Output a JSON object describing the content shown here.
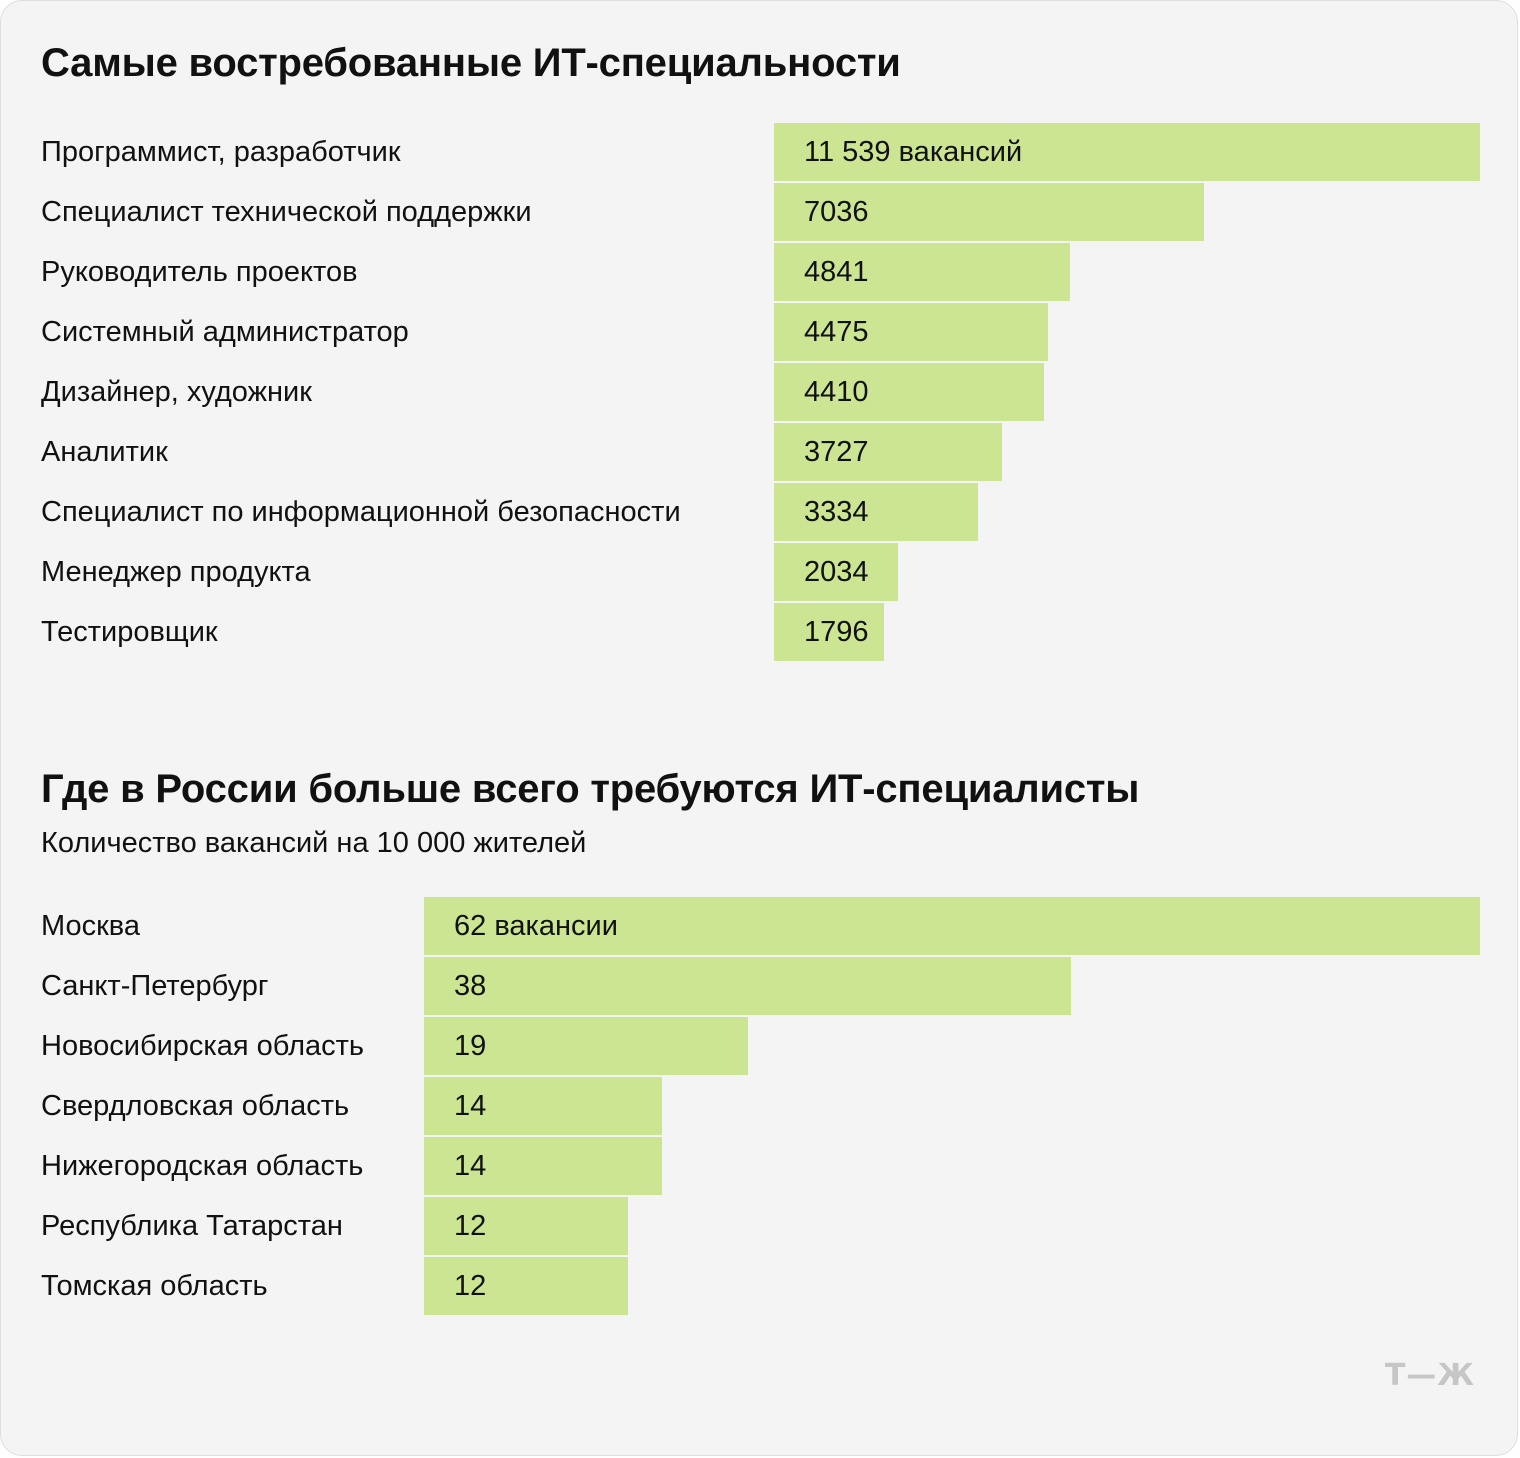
{
  "chart_data": [
    {
      "type": "bar",
      "orientation": "horizontal",
      "title": "Самые востребованные ИТ-специальности",
      "subtitle": "",
      "unit_label": "вакансий",
      "first_value_label": "11 539 вакансий",
      "categories": [
        "Программист, разработчик",
        "Специалист технической поддержки",
        "Руководитель проектов",
        "Системный администратор",
        "Дизайнер, художник",
        "Аналитик",
        "Специалист по информационной безопасности",
        "Менеджер продукта",
        "Тестировщик"
      ],
      "values": [
        11539,
        7036,
        4841,
        4475,
        4410,
        3727,
        3334,
        2034,
        1796
      ],
      "value_labels": [
        "11 539 вакансий",
        "7036",
        "4841",
        "4475",
        "4410",
        "3727",
        "3334",
        "2034",
        "1796"
      ],
      "xlim": [
        0,
        11539
      ],
      "grid": false,
      "legend": "none"
    },
    {
      "type": "bar",
      "orientation": "horizontal",
      "title": "Где в России больше всего требуются ИТ-специалисты",
      "subtitle": "Количество вакансий на 10 000 жителей",
      "categories": [
        "Москва",
        "Санкт-Петербург",
        "Новосибирская область",
        "Свердловская область",
        "Нижегородская область",
        "Республика Татарстан",
        "Томская область"
      ],
      "values": [
        62,
        38,
        19,
        14,
        14,
        12,
        12
      ],
      "value_labels": [
        "62 вакансии",
        "38",
        "19",
        "14",
        "14",
        "12",
        "12"
      ],
      "xlim": [
        0,
        62
      ],
      "grid": false,
      "legend": "none"
    }
  ],
  "colors": {
    "bar": "#cbe593",
    "background": "#f4f4f4",
    "text": "#111111",
    "logo": "#c6c6c6"
  },
  "logo": {
    "text": "Т—Ж"
  }
}
